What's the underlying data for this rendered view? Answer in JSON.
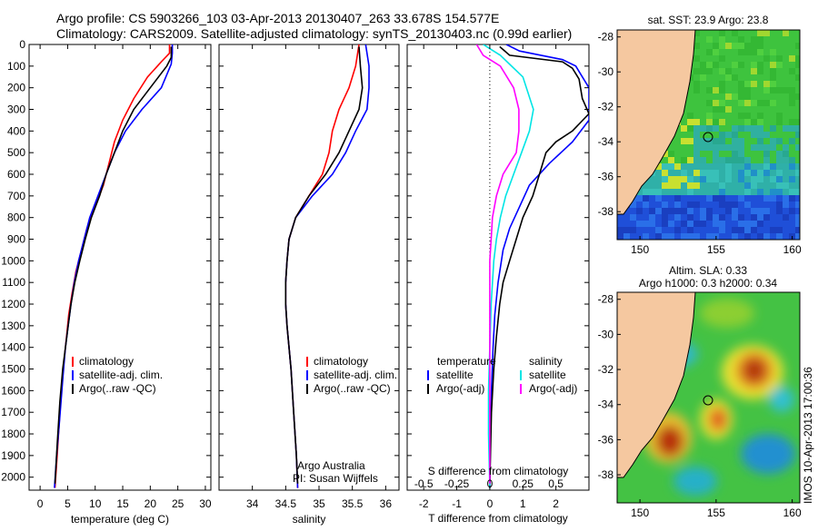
{
  "header": {
    "line1": "Argo profile: CS 5903266_103 03-Apr-2013 20130407_263 33.678S 154.577E",
    "line2": "Climatology: CARS2009. Satellite-adjusted climatology: synTS_20130403.nc (0.99d earlier)"
  },
  "stamp": "IMOS 10-Apr-2013 17:00:36",
  "colors": {
    "clim": "#ff0000",
    "sat": "#0000ff",
    "argo": "#000000",
    "sat_s": "#00e5e5",
    "argo_s": "#ff00ff",
    "land": "#f5c8a0"
  },
  "chart_data": [
    {
      "type": "line",
      "xlabel": "temperature (deg C)",
      "xlim": [
        -2,
        31
      ],
      "xticks": [
        "0",
        "5",
        "10",
        "15",
        "20",
        "25",
        "30"
      ],
      "ylim": [
        0,
        2060
      ],
      "yticks": [
        "0",
        "100",
        "200",
        "300",
        "400",
        "500",
        "600",
        "700",
        "800",
        "900",
        "1000",
        "1100",
        "1200",
        "1300",
        "1400",
        "1500",
        "1600",
        "1700",
        "1800",
        "1900",
        "2000"
      ],
      "legend": [
        "climatology",
        "satellite-adj. clim.",
        "Argo(..raw -QC)"
      ],
      "series": [
        {
          "name": "climatology",
          "color": "clim",
          "points": [
            [
              23.5,
              0
            ],
            [
              23.5,
              40
            ],
            [
              22,
              80
            ],
            [
              19.5,
              150
            ],
            [
              17,
              250
            ],
            [
              15,
              350
            ],
            [
              13.5,
              450
            ],
            [
              12.5,
              550
            ],
            [
              11.5,
              650
            ],
            [
              10,
              750
            ],
            [
              8.5,
              850
            ],
            [
              7.5,
              950
            ],
            [
              6.5,
              1050
            ],
            [
              5.8,
              1150
            ],
            [
              5.2,
              1250
            ],
            [
              4.8,
              1350
            ],
            [
              4.2,
              1500
            ],
            [
              3.6,
              1700
            ],
            [
              3.1,
              1900
            ],
            [
              2.7,
              2050
            ]
          ]
        },
        {
          "name": "satellite-adj. clim.",
          "color": "sat",
          "points": [
            [
              24,
              0
            ],
            [
              24,
              40
            ],
            [
              23.8,
              90
            ],
            [
              22,
              200
            ],
            [
              18.5,
              300
            ],
            [
              15.5,
              400
            ],
            [
              13.5,
              500
            ],
            [
              12,
              600
            ],
            [
              10.5,
              700
            ],
            [
              9,
              800
            ],
            [
              8,
              900
            ],
            [
              7,
              1000
            ],
            [
              6.2,
              1100
            ],
            [
              5.6,
              1200
            ],
            [
              5.1,
              1300
            ],
            [
              4.6,
              1400
            ],
            [
              4.1,
              1550
            ],
            [
              3.5,
              1750
            ],
            [
              3,
              1900
            ],
            [
              2.6,
              2050
            ]
          ]
        },
        {
          "name": "Argo(..raw -QC)",
          "color": "argo",
          "points": [
            [
              23.8,
              10
            ],
            [
              23.8,
              60
            ],
            [
              23,
              100
            ],
            [
              20,
              200
            ],
            [
              17,
              300
            ],
            [
              15,
              400
            ],
            [
              13.5,
              500
            ],
            [
              12,
              600
            ],
            [
              10.8,
              700
            ],
            [
              9.3,
              800
            ],
            [
              8.2,
              900
            ],
            [
              7.2,
              1000
            ],
            [
              6.3,
              1100
            ],
            [
              5.6,
              1200
            ],
            [
              5.1,
              1300
            ],
            [
              4.6,
              1400
            ],
            [
              4.1,
              1500
            ],
            [
              3.6,
              1650
            ],
            [
              3.1,
              1850
            ],
            [
              2.7,
              2030
            ]
          ]
        }
      ]
    },
    {
      "type": "line",
      "xlabel": "salinity",
      "xlim": [
        33.5,
        36.2
      ],
      "xticks": [
        "34",
        "34.5",
        "35",
        "35.5",
        "36"
      ],
      "ylim": [
        0,
        2060
      ],
      "legend": [
        "climatology",
        "satellite-adj. clim.",
        "Argo(..raw -QC)"
      ],
      "annotations": [
        "Argo Australia",
        "PI: Susan Wijffels"
      ],
      "series": [
        {
          "name": "climatology",
          "color": "clim",
          "points": [
            [
              35.6,
              0
            ],
            [
              35.55,
              100
            ],
            [
              35.45,
              200
            ],
            [
              35.3,
              300
            ],
            [
              35.2,
              400
            ],
            [
              35.15,
              500
            ],
            [
              35.05,
              600
            ],
            [
              34.85,
              700
            ],
            [
              34.65,
              800
            ],
            [
              34.55,
              900
            ],
            [
              34.52,
              1000
            ],
            [
              34.5,
              1100
            ],
            [
              34.5,
              1200
            ],
            [
              34.52,
              1300
            ],
            [
              34.55,
              1400
            ],
            [
              34.58,
              1500
            ],
            [
              34.62,
              1700
            ],
            [
              34.66,
              1900
            ],
            [
              34.68,
              2050
            ]
          ]
        },
        {
          "name": "satellite-adj. clim.",
          "color": "sat",
          "points": [
            [
              35.7,
              0
            ],
            [
              35.75,
              100
            ],
            [
              35.75,
              200
            ],
            [
              35.72,
              300
            ],
            [
              35.55,
              400
            ],
            [
              35.4,
              500
            ],
            [
              35.2,
              600
            ],
            [
              34.9,
              700
            ],
            [
              34.65,
              800
            ],
            [
              34.55,
              900
            ],
            [
              34.52,
              1000
            ],
            [
              34.5,
              1100
            ],
            [
              34.5,
              1200
            ],
            [
              34.52,
              1300
            ],
            [
              34.55,
              1400
            ],
            [
              34.58,
              1500
            ],
            [
              34.62,
              1700
            ],
            [
              34.66,
              1900
            ],
            [
              34.68,
              2050
            ]
          ]
        },
        {
          "name": "Argo(..raw -QC)",
          "color": "argo",
          "points": [
            [
              35.6,
              10
            ],
            [
              35.62,
              100
            ],
            [
              35.65,
              200
            ],
            [
              35.6,
              300
            ],
            [
              35.45,
              400
            ],
            [
              35.3,
              500
            ],
            [
              35.1,
              600
            ],
            [
              34.85,
              700
            ],
            [
              34.65,
              800
            ],
            [
              34.55,
              900
            ],
            [
              34.52,
              1000
            ],
            [
              34.5,
              1100
            ],
            [
              34.5,
              1200
            ],
            [
              34.52,
              1300
            ],
            [
              34.55,
              1400
            ],
            [
              34.58,
              1500
            ],
            [
              34.62,
              1700
            ],
            [
              34.66,
              1900
            ],
            [
              34.68,
              2030
            ]
          ]
        }
      ]
    },
    {
      "type": "line",
      "xlabel": "T difference from climatology",
      "xlabel_top": "S difference from climatology",
      "xlim": [
        -2.5,
        3
      ],
      "xticks": [
        "-2",
        "-1",
        "0",
        "1",
        "2"
      ],
      "xticks_s": [
        "-0.5",
        "-0.25",
        "0",
        "0.25",
        "0.5"
      ],
      "ylim": [
        0,
        2060
      ],
      "legend_t": [
        "temperature",
        "satellite",
        "Argo(-adj)"
      ],
      "legend_s": [
        "salinity",
        "satellite",
        "Argo(-adj)"
      ],
      "series": [
        {
          "name": "satellite",
          "color": "sat",
          "points": [
            [
              0.5,
              0
            ],
            [
              0.9,
              30
            ],
            [
              2.2,
              70
            ],
            [
              2.6,
              100
            ],
            [
              3,
              200
            ],
            [
              3,
              350
            ],
            [
              2.5,
              450
            ],
            [
              1.8,
              550
            ],
            [
              1.2,
              650
            ],
            [
              0.9,
              750
            ],
            [
              0.6,
              850
            ],
            [
              0.4,
              950
            ],
            [
              0.25,
              1100
            ],
            [
              0.15,
              1250
            ],
            [
              0.1,
              1400
            ],
            [
              0.05,
              1600
            ],
            [
              0.02,
              1800
            ],
            [
              0,
              2050
            ]
          ]
        },
        {
          "name": "Argo(-adj)",
          "color": "argo",
          "points": [
            [
              0.3,
              10
            ],
            [
              0.6,
              50
            ],
            [
              2.2,
              80
            ],
            [
              2.5,
              110
            ],
            [
              2.7,
              160
            ],
            [
              2.8,
              250
            ],
            [
              3,
              320
            ],
            [
              2.5,
              400
            ],
            [
              2,
              450
            ],
            [
              1.7,
              500
            ],
            [
              1.5,
              600
            ],
            [
              1.3,
              700
            ],
            [
              1,
              800
            ],
            [
              0.8,
              900
            ],
            [
              0.6,
              1000
            ],
            [
              0.4,
              1100
            ],
            [
              0.3,
              1200
            ],
            [
              0.2,
              1350
            ],
            [
              0.12,
              1500
            ],
            [
              0.05,
              1700
            ],
            [
              0.02,
              1900
            ],
            [
              0,
              2030
            ]
          ]
        },
        {
          "name": "satellite",
          "color": "sat_s",
          "points": [
            [
              -0.05,
              0
            ],
            [
              0.08,
              50
            ],
            [
              0.25,
              150
            ],
            [
              0.33,
              300
            ],
            [
              0.3,
              400
            ],
            [
              0.24,
              500
            ],
            [
              0.18,
              600
            ],
            [
              0.12,
              700
            ],
            [
              0.08,
              800
            ],
            [
              0.05,
              900
            ],
            [
              0.03,
              1000
            ],
            [
              0.01,
              1200
            ],
            [
              0,
              1400
            ],
            [
              -0.01,
              1600
            ],
            [
              -0.01,
              1800
            ],
            [
              0,
              2050
            ]
          ]
        },
        {
          "name": "Argo(-adj)",
          "color": "argo_s",
          "points": [
            [
              -0.1,
              0
            ],
            [
              -0.05,
              50
            ],
            [
              0.08,
              100
            ],
            [
              0.18,
              200
            ],
            [
              0.22,
              300
            ],
            [
              0.22,
              400
            ],
            [
              0.2,
              500
            ],
            [
              0.1,
              600
            ],
            [
              0.05,
              700
            ],
            [
              0.02,
              800
            ],
            [
              0.01,
              900
            ],
            [
              0,
              1000
            ],
            [
              0,
              1200
            ],
            [
              0,
              1400
            ],
            [
              0,
              1600
            ],
            [
              0,
              1800
            ],
            [
              0,
              2030
            ]
          ]
        }
      ]
    },
    {
      "type": "heatmap",
      "title": "sat. SST: 23.9  Argo: 23.8",
      "xlim": [
        148.5,
        160.5
      ],
      "ylim": [
        -39.6,
        -27.6
      ],
      "xticks": [
        "150",
        "155",
        "160"
      ],
      "yticks": [
        "-28",
        "-30",
        "-32",
        "-34",
        "-36",
        "-38"
      ],
      "marker": [
        154.577,
        -33.678
      ]
    },
    {
      "type": "heatmap",
      "title": "Altim. SLA: 0.33",
      "subtitle": "Argo h1000: 0.3  h2000: 0.34",
      "xlim": [
        148.5,
        160.5
      ],
      "ylim": [
        -39.6,
        -27.6
      ],
      "xticks": [
        "150",
        "155",
        "160"
      ],
      "yticks": [
        "-28",
        "-30",
        "-32",
        "-34",
        "-36",
        "-38"
      ],
      "marker": [
        154.577,
        -33.678
      ]
    }
  ]
}
